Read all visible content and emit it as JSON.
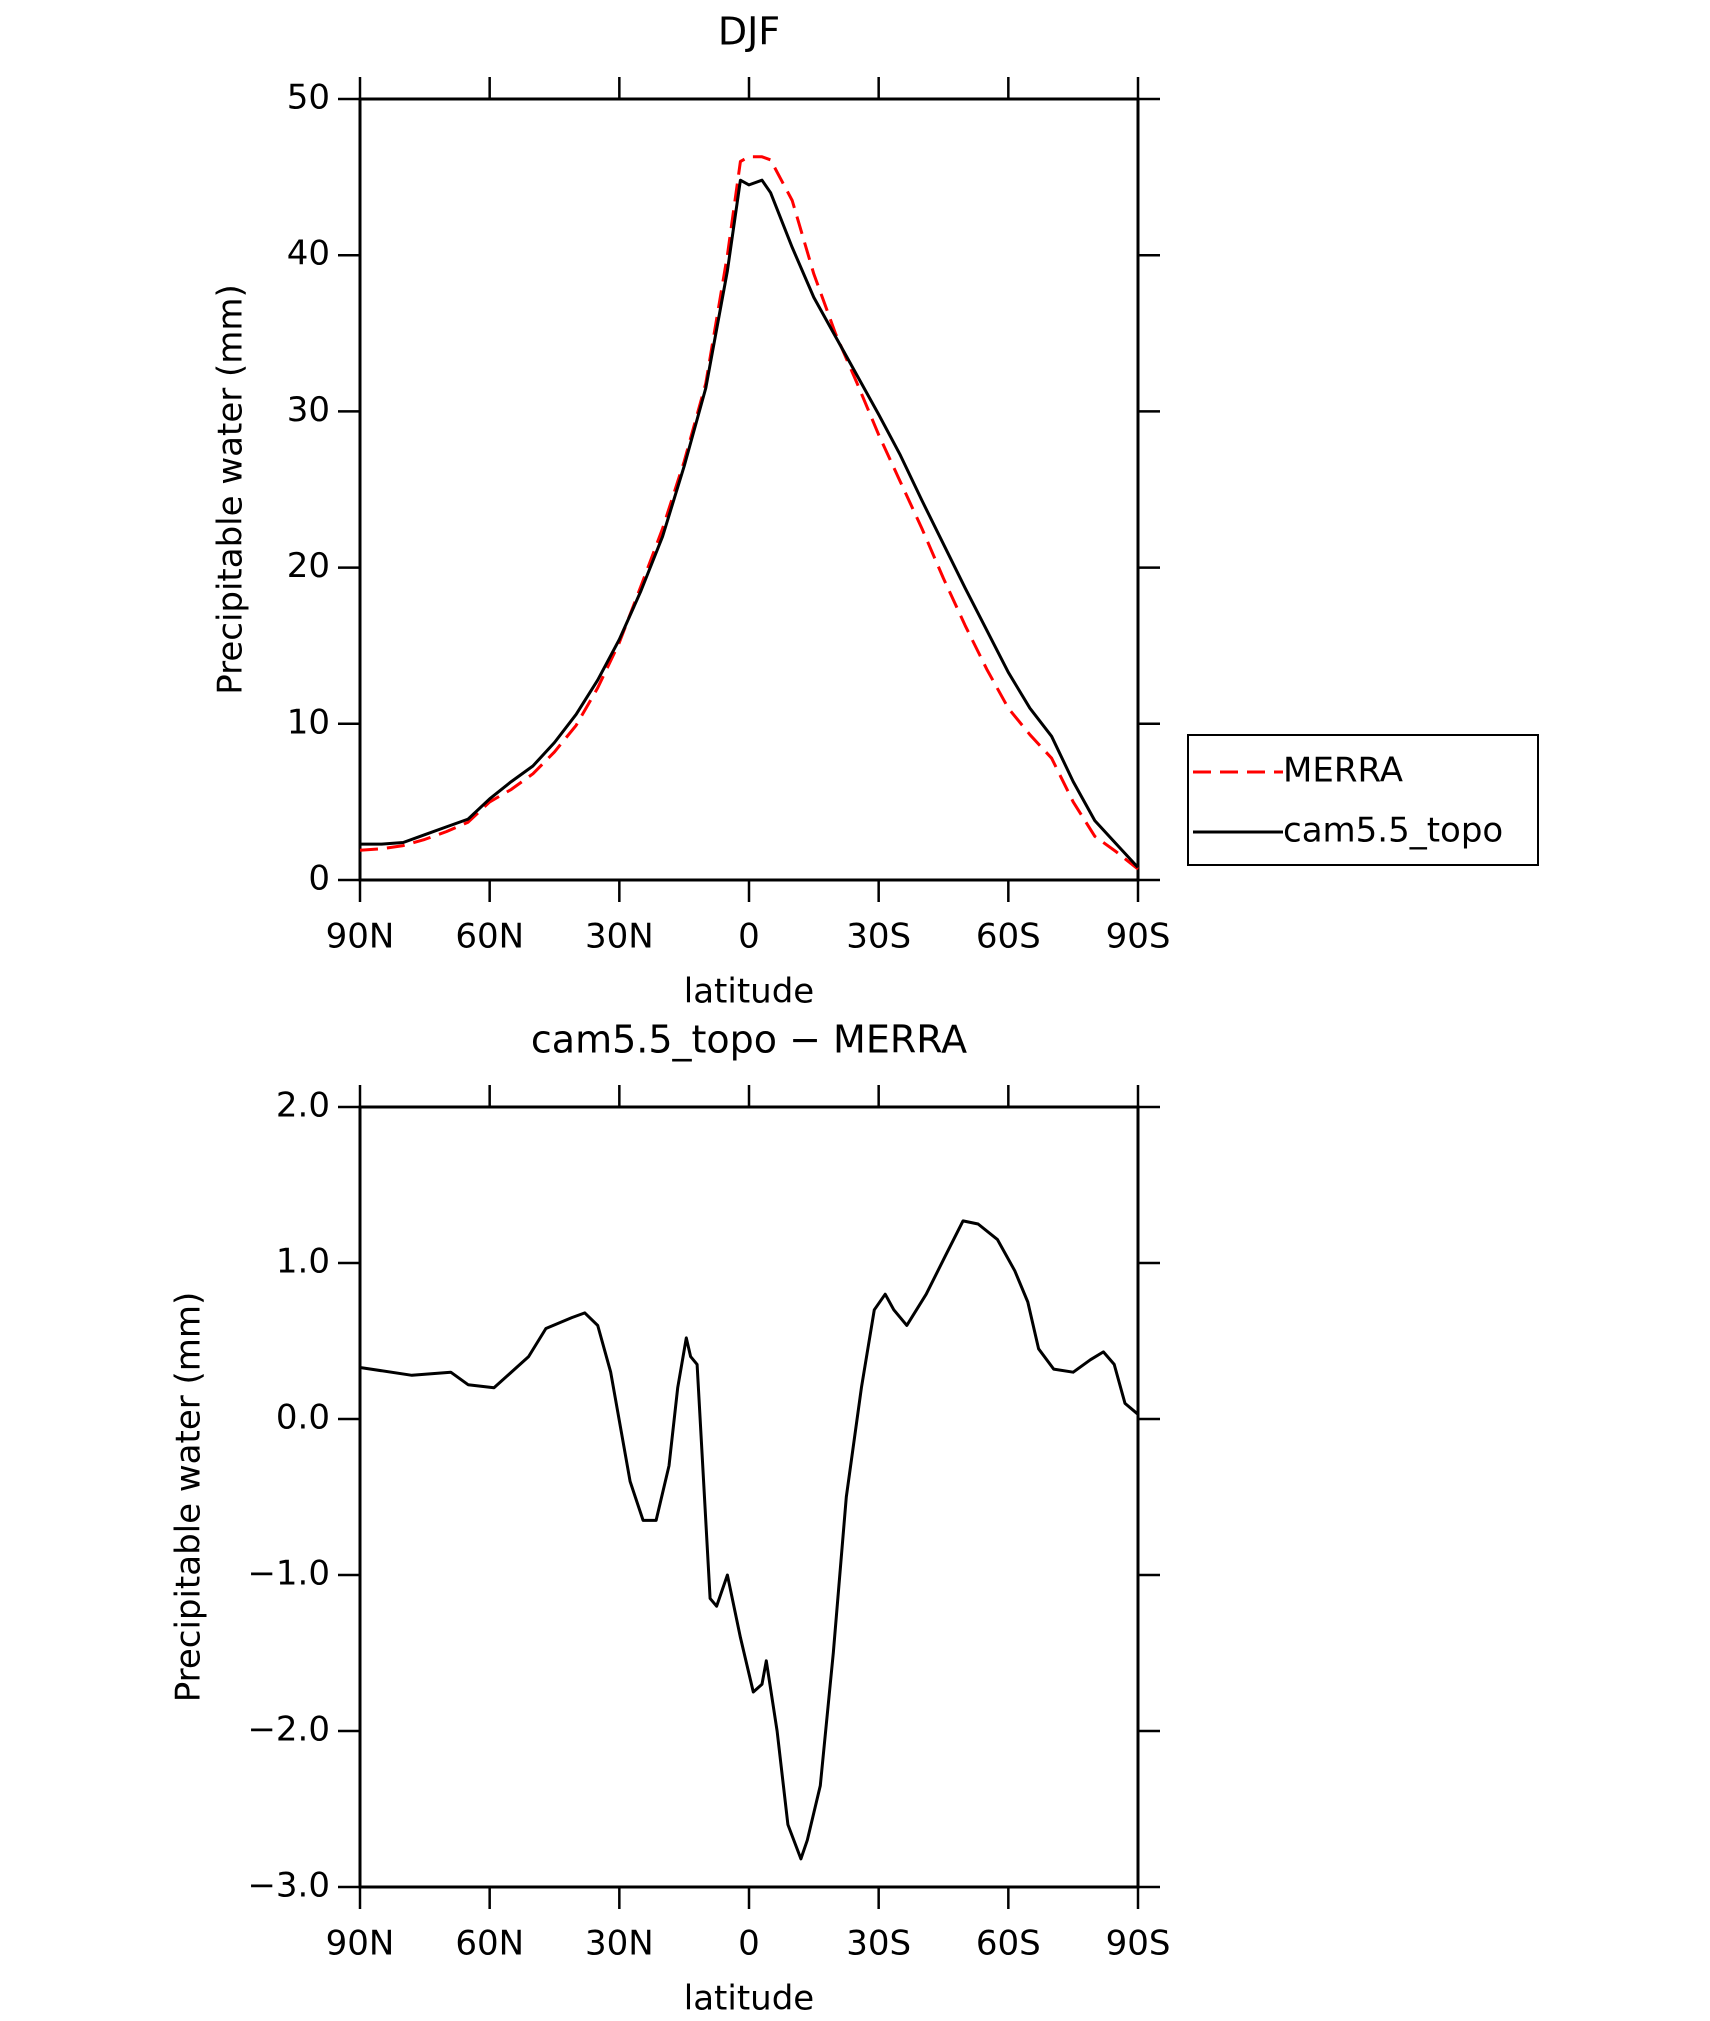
{
  "chart_data": [
    {
      "type": "line",
      "title": "DJF",
      "x_label": "latitude",
      "y_label": "Precipitable water (mm)",
      "x": [
        90,
        85,
        80,
        75,
        70,
        65,
        60,
        55,
        50,
        45,
        40,
        35,
        30,
        25,
        20,
        15,
        10,
        5,
        2,
        0,
        -3,
        -5,
        -10,
        -15,
        -20,
        -25,
        -30,
        -35,
        -40,
        -45,
        -50,
        -55,
        -60,
        -65,
        -70,
        -75,
        -80,
        -85,
        -90
      ],
      "xlim": [
        90,
        -90
      ],
      "xticks": [
        {
          "value": 90,
          "label": "90N"
        },
        {
          "value": 60,
          "label": "60N"
        },
        {
          "value": 30,
          "label": "30N"
        },
        0,
        {
          "value": -30,
          "label": "30S"
        },
        {
          "value": -60,
          "label": "60S"
        },
        {
          "value": -90,
          "label": "90S"
        }
      ],
      "ylim": [
        0,
        50
      ],
      "yticks": [
        0,
        10,
        20,
        30,
        40,
        50
      ],
      "legend": "right",
      "series": [
        {
          "name": "MERRA",
          "color": "#ff0000",
          "linestyle": "dashed",
          "values": [
            1.9,
            2.0,
            2.2,
            2.6,
            3.1,
            3.7,
            5.0,
            5.8,
            6.8,
            8.2,
            9.9,
            12.3,
            15.2,
            18.8,
            22.5,
            26.8,
            31.8,
            40,
            46,
            46.3,
            46.3,
            46.1,
            43.5,
            38.8,
            35,
            31.8,
            28.5,
            25.5,
            22.5,
            19.3,
            16.3,
            13.5,
            11,
            9.3,
            7.8,
            5,
            2.8,
            1.8,
            0.7
          ]
        },
        {
          "name": "cam5.5_topo",
          "color": "#000000",
          "linestyle": "solid",
          "values": [
            2.3,
            2.3,
            2.4,
            2.9,
            3.4,
            3.9,
            5.2,
            6.3,
            7.3,
            8.8,
            10.6,
            12.8,
            15.4,
            18.5,
            22,
            26.5,
            31.5,
            39,
            44.8,
            44.5,
            44.8,
            44,
            40.5,
            37.3,
            34.8,
            32.3,
            29.8,
            27.2,
            24.3,
            21.5,
            18.7,
            16,
            13.3,
            11,
            9.2,
            6.3,
            3.8,
            2.3,
            0.8
          ]
        }
      ]
    },
    {
      "type": "line",
      "title": "cam5.5_topo − MERRA",
      "x_label": "latitude",
      "y_label": "Precipitable water (mm)",
      "x": [
        90,
        78,
        69,
        65,
        59,
        51,
        47,
        41,
        38,
        35,
        32,
        27.5,
        24.5,
        21.5,
        18.5,
        16.5,
        14.5,
        13.5,
        12,
        9,
        7.5,
        5,
        2,
        -1,
        -3,
        -4,
        -6.5,
        -9,
        -12,
        -13.5,
        -16.5,
        -19.5,
        -22.5,
        -26,
        -29,
        -31.5,
        -33.5,
        -36.5,
        -41,
        -45.5,
        -49.5,
        -53,
        -57.5,
        -61.5,
        -64.5,
        -67,
        -70.5,
        -75,
        -79,
        -82,
        -84.5,
        -87,
        -90
      ],
      "xlim": [
        90,
        -90
      ],
      "xticks": [
        {
          "value": 90,
          "label": "90N"
        },
        {
          "value": 60,
          "label": "60N"
        },
        {
          "value": 30,
          "label": "30N"
        },
        0,
        {
          "value": -30,
          "label": "30S"
        },
        {
          "value": -60,
          "label": "60S"
        },
        {
          "value": -90,
          "label": "90S"
        }
      ],
      "ylim": [
        -3,
        2
      ],
      "yticks": [
        {
          "value": -3,
          "label": "−3.0"
        },
        {
          "value": -2,
          "label": "−2.0"
        },
        {
          "value": -1,
          "label": "−1.0"
        },
        {
          "value": 0,
          "label": "0.0"
        },
        {
          "value": 1,
          "label": "1.0"
        },
        {
          "value": 2,
          "label": "2.0"
        }
      ],
      "series": [
        {
          "color": "#000000",
          "linestyle": "solid",
          "values": [
            0.33,
            0.28,
            0.3,
            0.22,
            0.2,
            0.4,
            0.58,
            0.65,
            0.68,
            0.6,
            0.3,
            -0.4,
            -0.65,
            -0.65,
            -0.3,
            0.2,
            0.52,
            0.4,
            0.35,
            -1.15,
            -1.2,
            -1.0,
            -1.4,
            -1.75,
            -1.7,
            -1.55,
            -2.0,
            -2.6,
            -2.82,
            -2.7,
            -2.35,
            -1.5,
            -0.5,
            0.2,
            0.7,
            0.8,
            0.7,
            0.6,
            0.8,
            1.05,
            1.27,
            1.25,
            1.15,
            0.95,
            0.75,
            0.45,
            0.32,
            0.3,
            0.38,
            0.43,
            0.35,
            0.1,
            0.03
          ]
        }
      ]
    }
  ]
}
